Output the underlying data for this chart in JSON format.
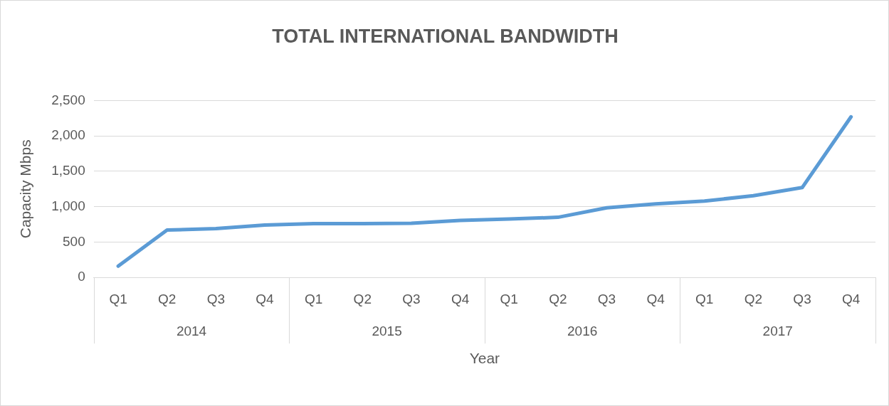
{
  "chart_data": {
    "type": "line",
    "title": "TOTAL INTERNATIONAL BANDWIDTH",
    "xlabel": "Year",
    "ylabel": "Capacity Mbps",
    "categories": [
      "Q1",
      "Q2",
      "Q3",
      "Q4",
      "Q1",
      "Q2",
      "Q3",
      "Q4",
      "Q1",
      "Q2",
      "Q3",
      "Q4",
      "Q1",
      "Q2",
      "Q3",
      "Q4"
    ],
    "annotations": [
      "2014",
      "2015",
      "2016",
      "2017"
    ],
    "series": [
      {
        "color": "#5b9bd5",
        "values": [
          160,
          670,
          690,
          740,
          760,
          760,
          765,
          805,
          825,
          850,
          985,
          1040,
          1080,
          1155,
          1270,
          2270
        ]
      }
    ],
    "ylim": [
      0,
      2500
    ],
    "yticks": [
      0,
      500,
      {
        "value": 1000,
        "label": "1,000"
      },
      {
        "value": 1500,
        "label": "1,500"
      },
      {
        "value": 2000,
        "label": "2,000"
      },
      {
        "value": 2500,
        "label": "2,500"
      }
    ],
    "grid": "y",
    "legend": false,
    "marker": "none",
    "line_style": "solid"
  }
}
